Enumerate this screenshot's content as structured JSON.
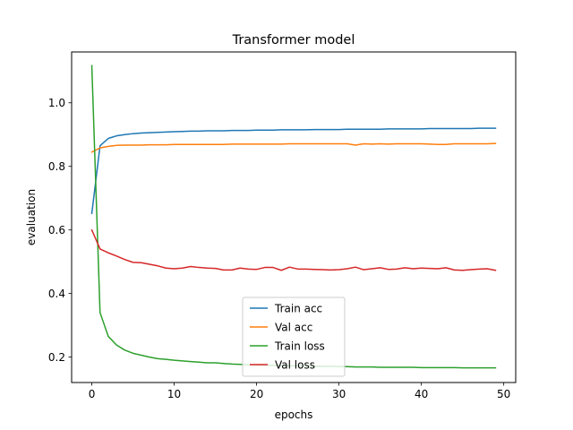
{
  "chart_data": {
    "type": "line",
    "title": "Transformer model",
    "xlabel": "epochs",
    "ylabel": "evaluation",
    "xlim": [
      -2.45,
      51.45
    ],
    "ylim": [
      0.12,
      1.16
    ],
    "xticks": [
      0,
      10,
      20,
      30,
      40,
      50
    ],
    "yticks": [
      0.2,
      0.4,
      0.6,
      0.8,
      1.0
    ],
    "ytick_labels": [
      "0.2",
      "0.4",
      "0.6",
      "0.8",
      "1.0"
    ],
    "legend_position": "lower-center",
    "x": [
      0,
      1,
      2,
      3,
      4,
      5,
      6,
      7,
      8,
      9,
      10,
      11,
      12,
      13,
      14,
      15,
      16,
      17,
      18,
      19,
      20,
      21,
      22,
      23,
      24,
      25,
      26,
      27,
      28,
      29,
      30,
      31,
      32,
      33,
      34,
      35,
      36,
      37,
      38,
      39,
      40,
      41,
      42,
      43,
      44,
      45,
      46,
      47,
      48,
      49
    ],
    "series": [
      {
        "name": "Train acc",
        "color": "#1f77b4",
        "values": [
          0.652,
          0.865,
          0.888,
          0.896,
          0.9,
          0.903,
          0.905,
          0.906,
          0.907,
          0.908,
          0.909,
          0.91,
          0.911,
          0.911,
          0.912,
          0.912,
          0.912,
          0.913,
          0.913,
          0.913,
          0.914,
          0.914,
          0.914,
          0.915,
          0.915,
          0.915,
          0.915,
          0.916,
          0.916,
          0.916,
          0.916,
          0.917,
          0.917,
          0.917,
          0.917,
          0.917,
          0.918,
          0.918,
          0.918,
          0.918,
          0.918,
          0.919,
          0.919,
          0.919,
          0.919,
          0.919,
          0.919,
          0.92,
          0.92,
          0.92
        ]
      },
      {
        "name": "Val acc",
        "color": "#ff7f0e",
        "values": [
          0.845,
          0.858,
          0.863,
          0.866,
          0.867,
          0.867,
          0.867,
          0.868,
          0.868,
          0.868,
          0.869,
          0.869,
          0.869,
          0.869,
          0.869,
          0.869,
          0.869,
          0.87,
          0.87,
          0.87,
          0.87,
          0.87,
          0.87,
          0.87,
          0.871,
          0.871,
          0.871,
          0.871,
          0.871,
          0.871,
          0.871,
          0.871,
          0.867,
          0.871,
          0.87,
          0.871,
          0.87,
          0.871,
          0.871,
          0.871,
          0.871,
          0.87,
          0.869,
          0.869,
          0.871,
          0.871,
          0.871,
          0.871,
          0.871,
          0.872
        ]
      },
      {
        "name": "Train loss",
        "color": "#2ca02c",
        "values": [
          1.117,
          0.34,
          0.265,
          0.238,
          0.222,
          0.212,
          0.206,
          0.2,
          0.195,
          0.193,
          0.19,
          0.188,
          0.186,
          0.184,
          0.182,
          0.182,
          0.18,
          0.178,
          0.177,
          0.176,
          0.175,
          0.175,
          0.174,
          0.173,
          0.173,
          0.172,
          0.172,
          0.171,
          0.171,
          0.171,
          0.17,
          0.17,
          0.169,
          0.169,
          0.169,
          0.168,
          0.168,
          0.168,
          0.168,
          0.168,
          0.167,
          0.167,
          0.167,
          0.167,
          0.167,
          0.166,
          0.166,
          0.166,
          0.166,
          0.166
        ]
      },
      {
        "name": "Val loss",
        "color": "#d62728",
        "values": [
          0.6,
          0.54,
          0.528,
          0.518,
          0.507,
          0.498,
          0.497,
          0.492,
          0.487,
          0.48,
          0.478,
          0.48,
          0.485,
          0.482,
          0.48,
          0.479,
          0.474,
          0.474,
          0.48,
          0.477,
          0.476,
          0.482,
          0.482,
          0.473,
          0.483,
          0.477,
          0.477,
          0.476,
          0.475,
          0.474,
          0.475,
          0.478,
          0.483,
          0.475,
          0.478,
          0.481,
          0.476,
          0.477,
          0.481,
          0.478,
          0.48,
          0.479,
          0.478,
          0.481,
          0.474,
          0.473,
          0.475,
          0.477,
          0.478,
          0.473
        ]
      }
    ]
  }
}
